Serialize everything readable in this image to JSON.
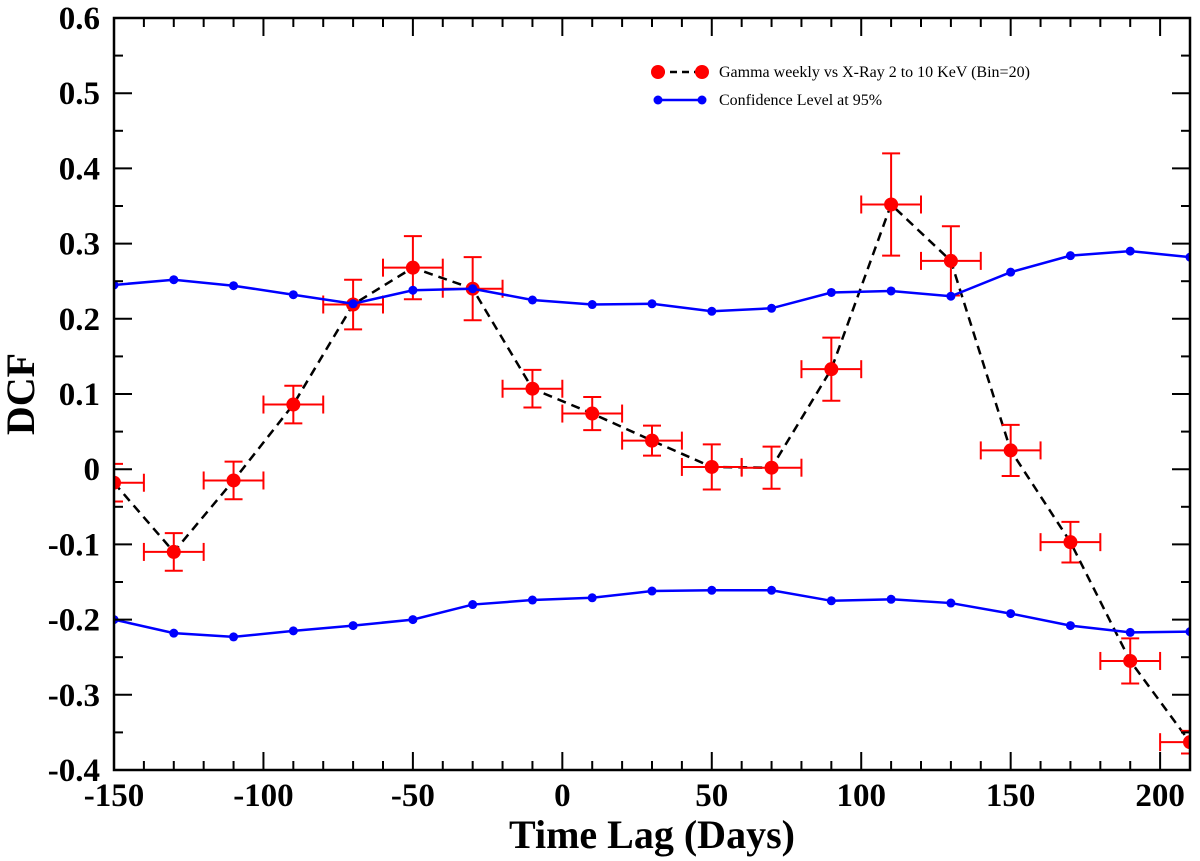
{
  "chart_data": {
    "type": "line",
    "title": "",
    "xlabel": "Time Lag (Days)",
    "ylabel": "DCF",
    "xlim": [
      -150,
      210
    ],
    "ylim": [
      -0.4,
      0.6
    ],
    "x_ticks": [
      -150,
      -100,
      -50,
      0,
      50,
      100,
      150,
      200
    ],
    "x_tick_labels": [
      "-150",
      "-100",
      "-50",
      "0",
      "50",
      "100",
      "150",
      "200"
    ],
    "y_ticks": [
      -0.4,
      -0.3,
      -0.2,
      -0.1,
      0,
      0.1,
      0.2,
      0.3,
      0.4,
      0.5,
      0.6
    ],
    "y_tick_labels": [
      "-0.4",
      "-0.3",
      "-0.2",
      "-0.1",
      "0",
      "0.1",
      "0.2",
      "0.3",
      "0.4",
      "0.5",
      "0.6"
    ],
    "grid": false,
    "legend_position": "top-right",
    "series": [
      {
        "name": "Gamma weekly vs X-Ray 2 to 10 KeV (Bin=20)",
        "color": "#ff0000",
        "line_color": "#000000",
        "line_style": "dashed",
        "x": [
          -150,
          -130,
          -110,
          -90,
          -70,
          -50,
          -30,
          -10,
          10,
          30,
          50,
          70,
          90,
          110,
          130,
          150,
          170,
          190,
          210
        ],
        "y": [
          -0.018,
          -0.11,
          -0.015,
          0.086,
          0.219,
          0.268,
          0.24,
          0.107,
          0.074,
          0.038,
          0.003,
          0.002,
          0.133,
          0.352,
          0.277,
          0.025,
          -0.097,
          -0.255,
          -0.363
        ],
        "y_err": [
          0.025,
          0.025,
          0.025,
          0.025,
          0.033,
          0.042,
          0.042,
          0.025,
          0.022,
          0.02,
          0.03,
          0.028,
          0.042,
          0.068,
          0.046,
          0.034,
          0.027,
          0.03,
          0.015
        ],
        "x_err": [
          10,
          10,
          10,
          10,
          10,
          10,
          10,
          10,
          10,
          10,
          10,
          10,
          10,
          10,
          10,
          10,
          10,
          10,
          10
        ]
      },
      {
        "name": "Confidence Level at 95%",
        "color": "#0000ff",
        "line_style": "solid",
        "x": [
          -150,
          -130,
          -110,
          -90,
          -70,
          -50,
          -30,
          -10,
          10,
          30,
          50,
          70,
          90,
          110,
          130,
          150,
          170,
          190,
          210
        ],
        "y": [
          0.245,
          0.252,
          0.244,
          0.232,
          0.22,
          0.238,
          0.24,
          0.225,
          0.219,
          0.22,
          0.21,
          0.214,
          0.235,
          0.237,
          0.23,
          0.262,
          0.284,
          0.29,
          0.282
        ]
      },
      {
        "name": "",
        "color": "#0000ff",
        "line_style": "solid",
        "x": [
          -150,
          -130,
          -110,
          -90,
          -70,
          -50,
          -30,
          -10,
          10,
          30,
          50,
          70,
          90,
          110,
          130,
          150,
          170,
          190,
          210
        ],
        "y": [
          -0.2,
          -0.218,
          -0.223,
          -0.215,
          -0.208,
          -0.2,
          -0.18,
          -0.174,
          -0.171,
          -0.162,
          -0.161,
          -0.161,
          -0.175,
          -0.173,
          -0.178,
          -0.192,
          -0.208,
          -0.217,
          -0.216
        ]
      }
    ]
  }
}
